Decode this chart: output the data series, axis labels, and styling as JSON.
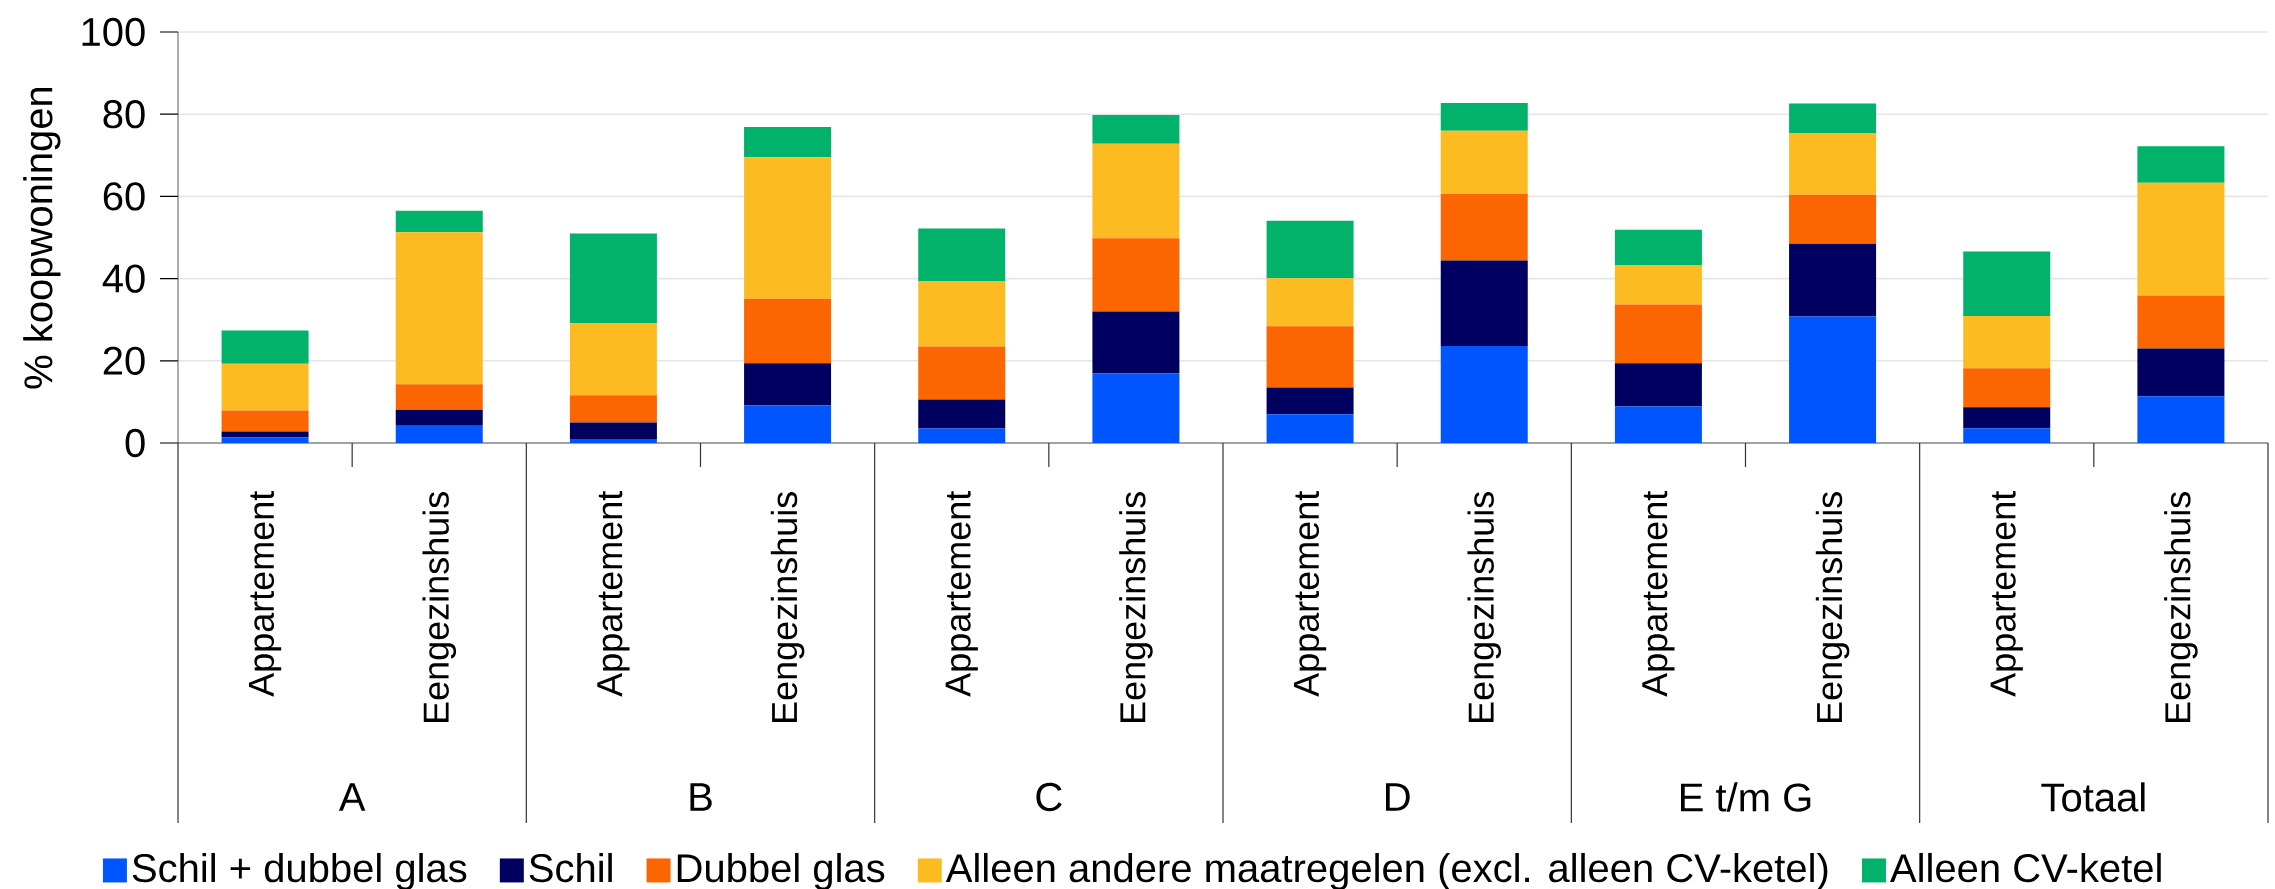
{
  "chart_data": {
    "type": "bar",
    "stacked": true,
    "ylabel": "% koopwoningen",
    "categories": [
      "Appartement",
      "Eengezinshuis",
      "Appartement",
      "Eengezinshuis",
      "Appartement",
      "Eengezinshuis",
      "Appartement",
      "Eengezinshuis",
      "Appartement",
      "Eengezinshuis",
      "Appartement",
      "Eengezinshuis"
    ],
    "annotations": [
      "A",
      "B",
      "C",
      "D",
      "E t/m G",
      "Totaal"
    ],
    "series": [
      {
        "name": "Schil + dubbel glas",
        "color": "#0055ff",
        "values": [
          1.4,
          4.2,
          1.0,
          9.1,
          3.5,
          17.0,
          7.0,
          23.6,
          8.9,
          30.8,
          3.6,
          11.4
        ]
      },
      {
        "name": "Schil",
        "color": "#000060",
        "values": [
          1.4,
          3.9,
          4.0,
          10.3,
          7.1,
          15.0,
          6.5,
          20.8,
          10.5,
          17.7,
          5.1,
          11.6
        ]
      },
      {
        "name": "Dubbel glas",
        "color": "#fb6602",
        "values": [
          5.1,
          6.2,
          6.6,
          15.7,
          12.9,
          17.8,
          14.9,
          16.2,
          14.3,
          11.9,
          9.5,
          12.9
        ]
      },
      {
        "name": "Alleen andere maatregelen (excl. alleen CV-ketel)",
        "color": "#fdbb22",
        "values": [
          11.4,
          37.0,
          17.5,
          34.4,
          15.8,
          23.0,
          11.7,
          15.4,
          9.5,
          14.9,
          12.7,
          27.4
        ]
      },
      {
        "name": "Alleen CV-ketel",
        "color": "#00b26a",
        "values": [
          8.1,
          5.2,
          21.9,
          7.4,
          12.9,
          7.0,
          14.0,
          6.7,
          8.7,
          7.3,
          15.7,
          8.9
        ]
      }
    ],
    "ylim": [
      0,
      100
    ],
    "yticks": [
      0,
      20,
      40,
      60,
      80,
      100
    ],
    "grid": "y",
    "legend": "bottom"
  }
}
